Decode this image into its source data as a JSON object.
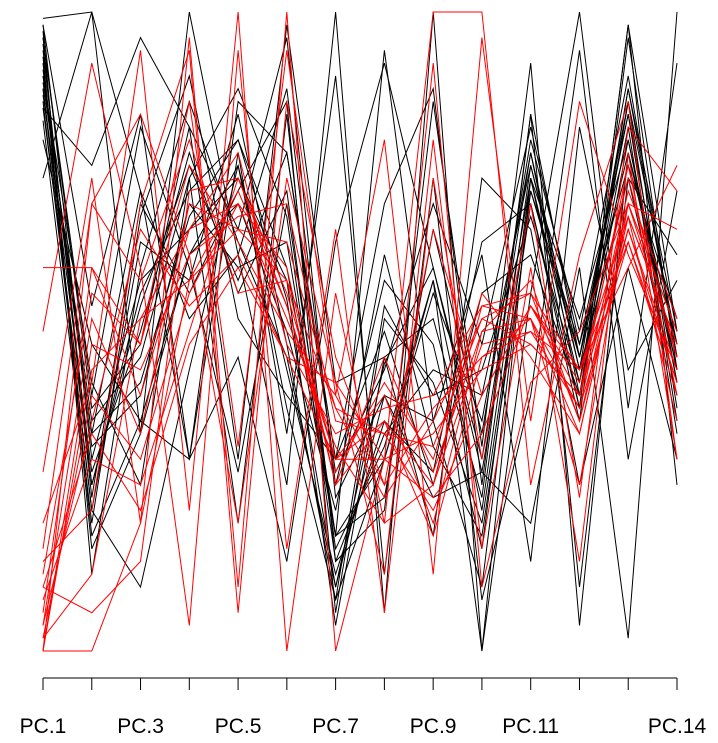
{
  "chart_data": {
    "type": "parallel-coordinates",
    "axes": [
      "PC.1",
      "PC.2",
      "PC.3",
      "PC.4",
      "PC.5",
      "PC.6",
      "PC.7",
      "PC.8",
      "PC.9",
      "PC.10",
      "PC.11",
      "PC.12",
      "PC.13",
      "PC.14"
    ],
    "tick_labels": [
      {
        "axis_index": 0,
        "text": "PC.1"
      },
      {
        "axis_index": 2,
        "text": "PC.3"
      },
      {
        "axis_index": 4,
        "text": "PC.5"
      },
      {
        "axis_index": 6,
        "text": "PC.7"
      },
      {
        "axis_index": 8,
        "text": "PC.9"
      },
      {
        "axis_index": 10,
        "text": "PC.11"
      },
      {
        "axis_index": 13,
        "text": "PC.14"
      }
    ],
    "ylim": [
      0,
      1
    ],
    "grid": false,
    "legend": "none",
    "colors": {
      "group_a": "#000000",
      "group_b": "#ff0000"
    },
    "series": [
      {
        "group": "group_a",
        "values": [
          0.94,
          0.26,
          0.56,
          0.72,
          0.8,
          0.55,
          0.1,
          0.45,
          0.6,
          0.3,
          0.78,
          0.44,
          0.88,
          0.46
        ]
      },
      {
        "group": "group_a",
        "values": [
          0.9,
          0.34,
          0.72,
          0.52,
          0.62,
          0.88,
          0.26,
          0.58,
          0.48,
          0.16,
          0.74,
          0.52,
          0.8,
          0.44
        ]
      },
      {
        "group": "group_a",
        "values": [
          0.92,
          0.18,
          0.36,
          0.62,
          0.76,
          0.44,
          0.12,
          0.36,
          0.28,
          0.64,
          0.7,
          0.38,
          0.98,
          0.5
        ]
      },
      {
        "group": "group_a",
        "values": [
          0.88,
          0.28,
          0.5,
          0.78,
          0.56,
          0.72,
          0.16,
          0.32,
          0.58,
          0.22,
          0.76,
          0.46,
          0.84,
          0.42
        ]
      },
      {
        "group": "group_a",
        "values": [
          0.96,
          0.38,
          0.48,
          0.82,
          0.66,
          0.96,
          0.24,
          0.4,
          0.36,
          0.1,
          0.72,
          0.48,
          0.76,
          0.52
        ]
      },
      {
        "group": "group_a",
        "values": [
          0.86,
          0.22,
          0.64,
          0.58,
          0.84,
          0.48,
          0.08,
          0.54,
          0.4,
          0.44,
          0.68,
          0.42,
          0.82,
          0.34
        ]
      },
      {
        "group": "group_a",
        "values": [
          0.91,
          0.32,
          0.4,
          0.7,
          0.6,
          0.64,
          0.18,
          0.24,
          0.66,
          0.34,
          0.8,
          0.5,
          0.9,
          0.46
        ]
      },
      {
        "group": "group_a",
        "values": [
          0.83,
          0.2,
          0.68,
          0.9,
          0.52,
          0.4,
          0.3,
          0.5,
          0.26,
          0.56,
          0.62,
          0.4,
          0.86,
          0.38
        ]
      },
      {
        "group": "group_a",
        "values": [
          0.98,
          0.3,
          0.58,
          0.66,
          0.74,
          0.58,
          0.04,
          0.46,
          0.52,
          0.24,
          0.84,
          0.46,
          0.78,
          0.48
        ]
      },
      {
        "group": "group_a",
        "values": [
          0.89,
          0.36,
          0.46,
          0.74,
          0.88,
          0.68,
          0.14,
          0.34,
          0.44,
          0.4,
          0.76,
          0.44,
          0.74,
          0.4
        ]
      },
      {
        "group": "group_a",
        "values": [
          0.93,
          0.16,
          0.34,
          0.62,
          0.7,
          0.5,
          0.22,
          0.62,
          0.32,
          0.18,
          0.7,
          0.36,
          0.96,
          0.44
        ]
      },
      {
        "group": "group_a",
        "values": [
          0.85,
          0.26,
          0.54,
          0.76,
          0.58,
          0.78,
          0.28,
          0.44,
          0.7,
          0.48,
          0.82,
          0.48,
          0.84,
          0.36
        ]
      },
      {
        "group": "group_a",
        "values": [
          0.97,
          0.12,
          0.6,
          0.86,
          0.64,
          0.46,
          0.1,
          0.4,
          0.24,
          0.28,
          0.74,
          0.42,
          0.88,
          0.5
        ]
      },
      {
        "group": "group_a",
        "values": [
          0.87,
          0.34,
          0.42,
          0.68,
          0.8,
          0.6,
          0.18,
          0.3,
          0.56,
          0.36,
          0.78,
          0.4,
          0.8,
          0.42
        ]
      },
      {
        "group": "group_a",
        "values": [
          0.95,
          0.24,
          0.7,
          0.56,
          0.72,
          0.86,
          0.06,
          0.52,
          0.42,
          0.2,
          0.72,
          0.46,
          0.86,
          0.48
        ]
      },
      {
        "group": "group_a",
        "values": [
          0.99,
          1.0,
          0.72,
          0.3,
          0.46,
          0.14,
          0.64,
          0.92,
          0.6,
          0.28,
          0.2,
          0.6,
          0.02,
          1.0
        ]
      },
      {
        "group": "group_a",
        "values": [
          0.74,
          1.0,
          0.34,
          1.0,
          0.62,
          0.26,
          1.0,
          0.06,
          1.0,
          0.0,
          0.56,
          1.0,
          0.38,
          0.92
        ]
      },
      {
        "group": "group_a",
        "values": [
          0.98,
          0.54,
          0.84,
          0.3,
          0.78,
          0.34,
          0.9,
          0.12,
          0.74,
          0.08,
          0.4,
          0.94,
          0.3,
          0.72
        ]
      },
      {
        "group": "group_a",
        "values": [
          0.85,
          0.76,
          0.96,
          0.82,
          0.3,
          0.98,
          0.42,
          0.46,
          0.18,
          0.74,
          0.66,
          0.26,
          0.6,
          0.3
        ]
      },
      {
        "group": "group_a",
        "values": [
          0.8,
          0.48,
          0.36,
          0.3,
          0.86,
          0.78,
          0.3,
          0.7,
          0.88,
          0.26,
          0.84,
          0.1,
          0.74,
          0.62
        ]
      },
      {
        "group": "group_a",
        "values": [
          0.96,
          0.4,
          0.82,
          0.6,
          0.28,
          0.7,
          0.18,
          0.94,
          0.36,
          0.62,
          0.14,
          0.82,
          0.44,
          0.58
        ]
      },
      {
        "group": "group_a",
        "values": [
          0.88,
          0.22,
          0.1,
          0.44,
          0.76,
          0.38,
          0.08,
          0.3,
          0.58,
          0.0,
          0.74,
          0.38,
          0.98,
          0.26
        ]
      },
      {
        "group": "group_a",
        "values": [
          0.9,
          0.42,
          0.26,
          0.74,
          0.2,
          0.84,
          0.14,
          0.22,
          0.86,
          0.32,
          0.92,
          0.04,
          0.78,
          0.44
        ]
      },
      {
        "group": "group_b",
        "values": [
          0.1,
          0.34,
          0.22,
          0.48,
          0.6,
          0.46,
          0.3,
          0.4,
          0.2,
          0.5,
          0.52,
          0.34,
          0.68,
          0.48
        ]
      },
      {
        "group": "group_b",
        "values": [
          0.04,
          0.52,
          0.34,
          0.7,
          0.66,
          0.58,
          0.38,
          0.24,
          0.36,
          0.52,
          0.48,
          0.4,
          0.7,
          0.46
        ]
      },
      {
        "group": "group_b",
        "values": [
          0.0,
          0.44,
          0.52,
          0.58,
          0.72,
          0.54,
          0.3,
          0.3,
          0.24,
          0.34,
          0.54,
          0.4,
          0.66,
          0.42
        ]
      },
      {
        "group": "group_b",
        "values": [
          0.06,
          0.6,
          0.4,
          0.66,
          0.78,
          0.48,
          0.34,
          0.38,
          0.4,
          0.54,
          0.56,
          0.36,
          0.7,
          0.5
        ]
      },
      {
        "group": "group_b",
        "values": [
          0.02,
          0.4,
          0.3,
          0.56,
          0.7,
          0.6,
          0.26,
          0.36,
          0.26,
          0.48,
          0.5,
          0.44,
          0.64,
          0.4
        ]
      },
      {
        "group": "group_b",
        "values": [
          0.12,
          0.56,
          0.48,
          0.76,
          0.64,
          0.5,
          0.4,
          0.26,
          0.38,
          0.46,
          0.52,
          0.38,
          0.72,
          0.52
        ]
      },
      {
        "group": "group_b",
        "values": [
          0.08,
          0.3,
          0.26,
          0.5,
          0.74,
          0.54,
          0.28,
          0.42,
          0.3,
          0.56,
          0.46,
          0.34,
          0.68,
          0.36
        ]
      },
      {
        "group": "group_b",
        "values": [
          0.0,
          0.48,
          0.44,
          0.62,
          0.68,
          0.7,
          0.36,
          0.34,
          0.22,
          0.4,
          0.54,
          0.42,
          0.74,
          0.46
        ]
      },
      {
        "group": "group_b",
        "values": [
          0.16,
          0.7,
          0.58,
          0.8,
          0.56,
          0.58,
          0.26,
          0.46,
          0.28,
          0.5,
          0.58,
          0.36,
          0.66,
          0.44
        ]
      },
      {
        "group": "group_b",
        "values": [
          0.04,
          0.36,
          0.66,
          0.54,
          0.62,
          0.46,
          0.42,
          0.3,
          0.34,
          0.44,
          0.48,
          0.4,
          0.76,
          0.4
        ]
      },
      {
        "group": "group_b",
        "values": [
          0.02,
          0.12,
          0.52,
          0.66,
          0.7,
          0.52,
          0.32,
          0.2,
          0.26,
          0.54,
          0.52,
          0.26,
          0.7,
          0.5
        ]
      },
      {
        "group": "group_b",
        "values": [
          0.1,
          0.06,
          0.14,
          0.72,
          0.74,
          0.56,
          0.3,
          0.36,
          0.18,
          0.46,
          0.5,
          0.38,
          0.64,
          0.42
        ]
      },
      {
        "group": "group_b",
        "values": [
          0.0,
          0.0,
          0.2,
          0.58,
          0.66,
          0.64,
          0.38,
          0.34,
          0.32,
          0.52,
          0.56,
          0.44,
          0.68,
          0.48
        ]
      },
      {
        "group": "group_b",
        "values": [
          0.28,
          0.74,
          0.2,
          0.96,
          0.1,
          1.0,
          0.0,
          0.3,
          1.0,
          1.0,
          0.26,
          0.62,
          0.86,
          0.3
        ]
      },
      {
        "group": "group_b",
        "values": [
          0.5,
          0.92,
          0.6,
          0.04,
          0.94,
          0.16,
          0.66,
          0.06,
          0.74,
          0.3,
          0.7,
          0.24,
          0.82,
          0.72
        ]
      },
      {
        "group": "group_b",
        "values": [
          0.2,
          0.42,
          0.94,
          0.22,
          1.0,
          0.0,
          0.56,
          0.2,
          0.92,
          0.1,
          0.42,
          0.5,
          0.7,
          0.66
        ]
      },
      {
        "group": "group_b",
        "values": [
          0.6,
          0.6,
          0.48,
          0.86,
          0.32,
          0.94,
          0.4,
          0.8,
          0.12,
          0.96,
          0.36,
          0.86,
          0.62,
          0.44
        ]
      },
      {
        "group": "group_b",
        "values": [
          0.0,
          0.7,
          0.84,
          0.62,
          0.2,
          0.74,
          0.42,
          0.12,
          0.8,
          0.16,
          0.6,
          0.14,
          0.78,
          0.3
        ]
      },
      {
        "group": "group_b",
        "values": [
          0.14,
          0.22,
          0.7,
          0.94,
          0.06,
          0.86,
          0.46,
          0.26,
          0.66,
          0.4,
          0.54,
          0.44,
          0.6,
          0.76
        ]
      }
    ]
  }
}
